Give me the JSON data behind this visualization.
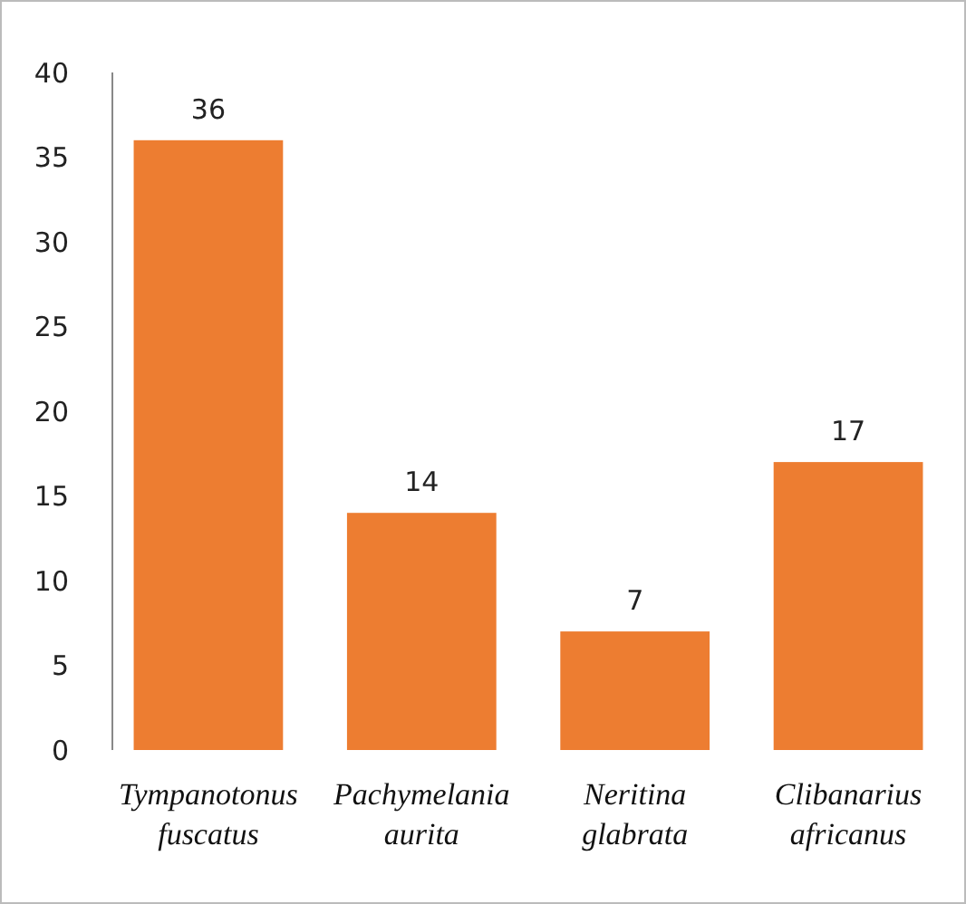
{
  "chart_data": {
    "type": "bar",
    "categories": [
      "Tympanotonus fuscatus",
      "Pachymelania aurita",
      "Neritina glabrata",
      "Clibanarius africanus"
    ],
    "values": [
      36,
      14,
      7,
      17
    ],
    "color": "#ed7d31",
    "ylim": [
      0,
      40
    ],
    "yticks": [
      0,
      5,
      10,
      15,
      20,
      25,
      30,
      35,
      40
    ],
    "grid": false,
    "data_labels": true
  }
}
